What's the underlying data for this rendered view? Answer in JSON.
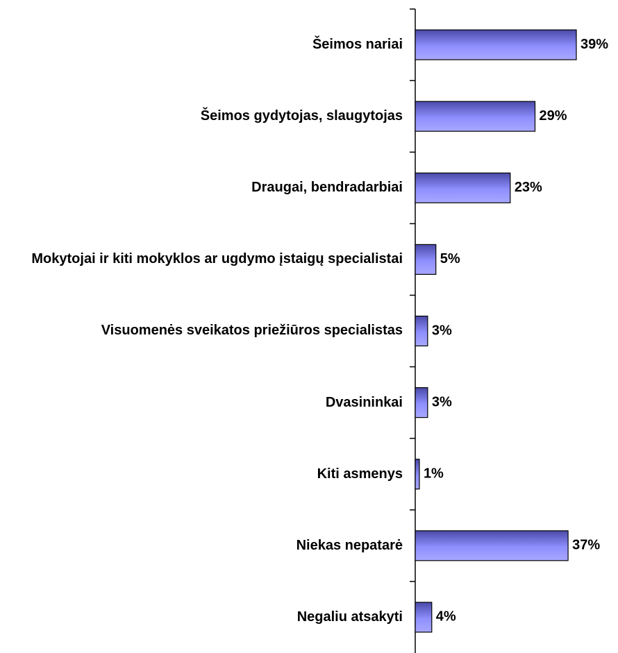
{
  "chart_data": {
    "type": "barh",
    "categories": [
      "Šeimos nariai",
      "Šeimos gydytojas, slaugytojas",
      "Draugai, bendradarbiai",
      "Mokytojai ir kiti mokyklos ar ugdymo įstaigų specialistai",
      "Visuomenės sveikatos priežiūros specialistas",
      "Dvasininkai",
      "Kiti asmenys",
      "Niekas nepatarė",
      "Negaliu atsakyti"
    ],
    "values": [
      39,
      29,
      23,
      5,
      3,
      3,
      1,
      37,
      4
    ],
    "value_labels": [
      "39%",
      "29%",
      "23%",
      "5%",
      "3%",
      "3%",
      "1%",
      "37%",
      "4%"
    ],
    "color": "#8f8fff"
  }
}
